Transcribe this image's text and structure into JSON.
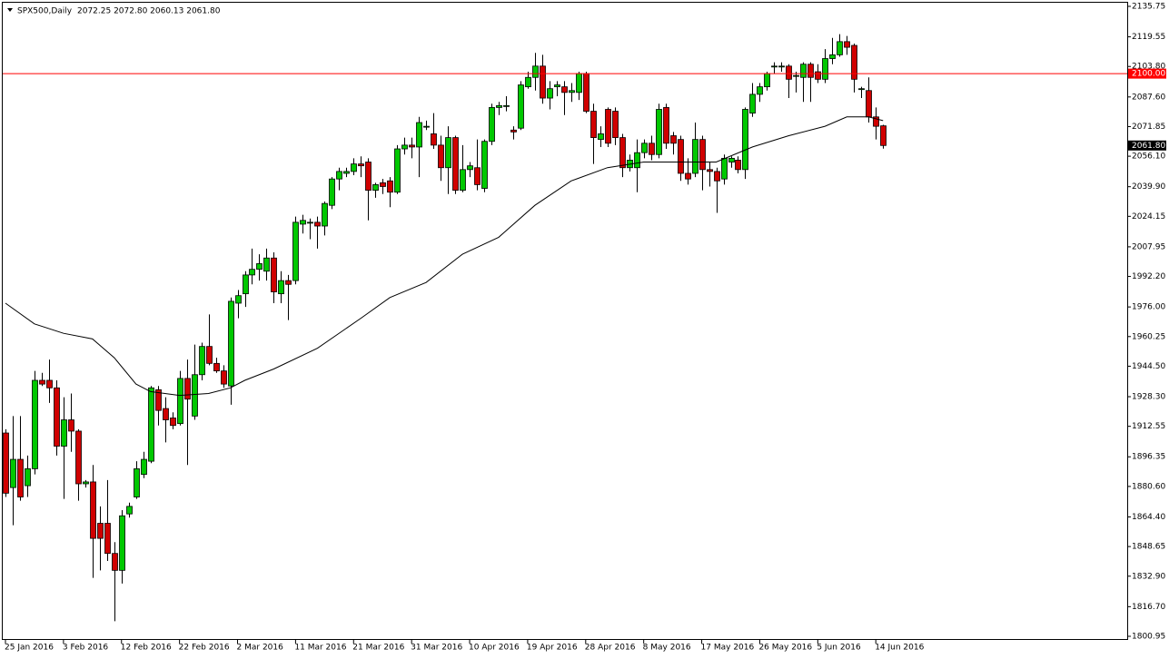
{
  "chart_data": {
    "type": "candlestick",
    "symbol": "SPX500,Daily",
    "ohlc_text": "2072.25 2072.80 2060.13 2061.80",
    "categories": [
      "25 Jan 2016",
      null,
      null,
      null,
      null,
      null,
      null,
      null,
      "3 Feb 2016",
      null,
      null,
      null,
      null,
      null,
      null,
      null,
      "12 Feb 2016",
      null,
      null,
      null,
      null,
      null,
      null,
      null,
      "22 Feb 2016",
      null,
      null,
      null,
      null,
      null,
      null,
      null,
      "2 Mar 2016",
      null,
      null,
      null,
      null,
      null,
      null,
      null,
      "11 Mar 2016",
      null,
      null,
      null,
      null,
      null,
      null,
      null,
      "21 Mar 2016",
      null,
      null,
      null,
      null,
      null,
      null,
      null,
      "31 Mar 2016",
      null,
      null,
      null,
      null,
      null,
      null,
      null,
      "10 Apr 2016",
      null,
      null,
      null,
      null,
      null,
      null,
      null,
      "19 Apr 2016",
      null,
      null,
      null,
      null,
      null,
      null,
      null,
      "28 Apr 2016",
      null,
      null,
      null,
      null,
      null,
      null,
      null,
      "8 May 2016",
      null,
      null,
      null,
      null,
      null,
      null,
      null,
      "17 May 2016",
      null,
      null,
      null,
      null,
      null,
      null,
      null,
      "26 May 2016",
      null,
      null,
      null,
      null,
      null,
      null,
      null,
      "5 Jun 2016",
      null,
      null,
      null,
      null,
      null,
      null,
      null,
      "14 Jun 2016",
      null
    ],
    "open": [
      1909,
      1880,
      1895,
      1881,
      1890,
      1937,
      1937,
      1933,
      1902,
      1916,
      1910,
      1882,
      1883,
      1861,
      1861,
      1845,
      1836,
      1866,
      1875,
      1887,
      1894,
      1932,
      1922,
      1917,
      1914,
      1938,
      1918,
      1940,
      1955,
      1946,
      1942,
      1934,
      1978,
      1983,
      1993,
      1996,
      1995,
      2002,
      1983,
      1990,
      1990,
      2020,
      2021,
      2021,
      2019,
      2030,
      2044,
      2047,
      2048,
      2052,
      2053,
      2038,
      2042,
      2043,
      2037,
      2060,
      2062,
      2061,
      2072,
      2068,
      2062,
      2050,
      2066,
      2038,
      2049,
      2050,
      2039,
      2064,
      2082,
      2083,
      2070,
      2071,
      2093,
      2098,
      2104,
      2087,
      2093,
      2093,
      2090,
      2090,
      2100,
      2080,
      2065,
      2081,
      2080,
      2066,
      2050,
      2050,
      2058,
      2063,
      2057,
      2082,
      2067,
      2065,
      2047,
      2047,
      2065,
      2049,
      2048,
      2044,
      2053,
      2054,
      2049,
      2079,
      2089,
      2093,
      2104,
      2104,
      2104,
      2099,
      2098,
      2105,
      2101,
      2097,
      2108,
      2110,
      2117,
      2115,
      2092,
      2091,
      2077,
      2072.25
    ],
    "high": [
      1911,
      1918,
      1918,
      1897,
      1942,
      1941,
      1948,
      1937,
      1928,
      1930,
      1911,
      1884,
      1892,
      1870,
      1884,
      1851,
      1868,
      1872,
      1894,
      1899,
      1934,
      1934,
      1928,
      1920,
      1942,
      1948,
      1956,
      1957,
      1972,
      1949,
      1945,
      1981,
      1985,
      1995,
      2007,
      2004,
      2007,
      2005,
      1995,
      1993,
      2024,
      2025,
      2023,
      2024,
      2032,
      2045,
      2050,
      2050,
      2055,
      2056,
      2055,
      2042,
      2044,
      2045,
      2062,
      2066,
      2066,
      2077,
      2075,
      2079,
      2067,
      2072,
      2067,
      2062,
      2053,
      2065,
      2065,
      2084,
      2085,
      2088,
      2072,
      2096,
      2101,
      2111,
      2110,
      2096,
      2096,
      2096,
      2095,
      2101,
      2101,
      2084,
      2072,
      2082,
      2082,
      2068,
      2057,
      2065,
      2065,
      2067,
      2084,
      2084,
      2069,
      2067,
      2055,
      2074,
      2067,
      2053,
      2050,
      2057,
      2056,
      2056,
      2082,
      2095,
      2095,
      2101,
      2106,
      2106,
      2105,
      2101,
      2106,
      2106,
      2105,
      2113,
      2119,
      2121,
      2120,
      2116,
      2093,
      2098,
      2082,
      2072.8
    ],
    "low": [
      1875,
      1860,
      1873,
      1875,
      1887,
      1934,
      1925,
      1897,
      1874,
      1899,
      1873,
      1880,
      1832,
      1836,
      1841,
      1809,
      1829,
      1864,
      1874,
      1885,
      1893,
      1913,
      1904,
      1911,
      1913,
      1892,
      1916,
      1937,
      1945,
      1941,
      1933,
      1924,
      1970,
      1976,
      1988,
      1990,
      1990,
      1978,
      1978,
      1969,
      1988,
      2015,
      2012,
      2007,
      2014,
      2028,
      2038,
      2045,
      2046,
      2045,
      2022,
      2034,
      2036,
      2029,
      2036,
      2057,
      2055,
      2045,
      2070,
      2060,
      2043,
      2036,
      2036,
      2037,
      2045,
      2038,
      2037,
      2062,
      2078,
      2080,
      2065,
      2070,
      2092,
      2091,
      2084,
      2081,
      2088,
      2078,
      2085,
      2086,
      2079,
      2052,
      2061,
      2061,
      2062,
      2045,
      2048,
      2037,
      2055,
      2054,
      2055,
      2060,
      2057,
      2043,
      2041,
      2045,
      2038,
      2040,
      2026,
      2041,
      2050,
      2047,
      2044,
      2077,
      2085,
      2091,
      2100,
      2101,
      2087,
      2090,
      2085,
      2085,
      2095,
      2095,
      2105,
      2109,
      2110,
      2090,
      2087,
      2074,
      2065,
      2060.13
    ],
    "close": [
      1877,
      1895,
      1875,
      1890,
      1937,
      1935,
      1933,
      1902,
      1916,
      1910,
      1882,
      1883,
      1853,
      1853,
      1845,
      1836,
      1865,
      1870,
      1890,
      1895,
      1933,
      1921,
      1916,
      1913,
      1938,
      1927,
      1940,
      1955,
      1946,
      1942,
      1935,
      1979,
      1982,
      1993,
      1996,
      1999,
      2002,
      1984,
      1990,
      1988,
      2021,
      2022,
      2021,
      2019,
      2031,
      2044,
      2048,
      2048,
      2052,
      2051,
      2038,
      2041,
      2040,
      2037,
      2060,
      2062,
      2061,
      2074,
      2072,
      2062,
      2050,
      2066,
      2038,
      2049,
      2051,
      2041,
      2064,
      2082,
      2083,
      2083,
      2069,
      2094,
      2098,
      2104,
      2087,
      2092,
      2094,
      2090,
      2091,
      2100,
      2080,
      2066,
      2068,
      2063,
      2066,
      2050,
      2054,
      2058,
      2063,
      2057,
      2081,
      2063,
      2063,
      2047,
      2044,
      2065,
      2049,
      2048,
      2043,
      2055,
      2055,
      2049,
      2081,
      2089,
      2093,
      2100,
      2104,
      2104,
      2097,
      2099,
      2105,
      2098,
      2097,
      2108,
      2110,
      2117,
      2114,
      2097,
      2092,
      2077,
      2072,
      2061.8
    ],
    "up_color": "#00c800",
    "down_color": "#d00000",
    "ma": {
      "x": [
        0,
        4,
        8,
        12,
        15,
        18,
        20,
        24,
        28,
        31,
        33,
        37,
        43,
        49,
        53,
        58,
        63,
        68,
        73,
        78,
        83,
        88,
        93,
        98,
        103,
        108,
        113,
        116,
        119,
        121
      ],
      "values": [
        1978,
        1967,
        1962,
        1959,
        1949,
        1935,
        1931,
        1929,
        1930,
        1933,
        1937,
        1943,
        1954,
        1970,
        1981,
        1989,
        2004,
        2013,
        2030,
        2043,
        2050,
        2053,
        2053,
        2053,
        2061,
        2067,
        2072,
        2077,
        2077,
        2075
      ],
      "color": "#000000"
    },
    "hline": {
      "value": 2100,
      "label": "2100.00",
      "color": "#ff0000"
    },
    "last": {
      "value": 2061.8,
      "label": "2061.80"
    },
    "ylim": [
      1800.95,
      2135.75
    ],
    "yticks": [
      {
        "value": 1800.95,
        "label": "1800.95"
      },
      {
        "value": 1816.7,
        "label": "1816.70"
      },
      {
        "value": 1832.9,
        "label": "1832.90"
      },
      {
        "value": 1848.65,
        "label": "1848.65"
      },
      {
        "value": 1864.4,
        "label": "1864.40"
      },
      {
        "value": 1880.6,
        "label": "1880.60"
      },
      {
        "value": 1896.35,
        "label": "1896.35"
      },
      {
        "value": 1912.55,
        "label": "1912.55"
      },
      {
        "value": 1928.3,
        "label": "1928.30"
      },
      {
        "value": 1944.5,
        "label": "1944.50"
      },
      {
        "value": 1960.25,
        "label": "1960.25"
      },
      {
        "value": 1976,
        "label": "1976.00"
      },
      {
        "value": 1992.2,
        "label": "1992.20"
      },
      {
        "value": 2007.95,
        "label": "2007.95"
      },
      {
        "value": 2024.15,
        "label": "2024.15"
      },
      {
        "value": 2039.9,
        "label": "2039.90"
      },
      {
        "value": 2056.1,
        "label": "2056.10"
      },
      {
        "value": 2071.85,
        "label": "2071.85"
      },
      {
        "value": 2087.6,
        "label": "2087.60"
      },
      {
        "value": 2103.8,
        "label": "2103.80"
      },
      {
        "value": 2119.55,
        "label": "2119.55"
      },
      {
        "value": 2135.75,
        "label": "2135.75"
      }
    ]
  }
}
